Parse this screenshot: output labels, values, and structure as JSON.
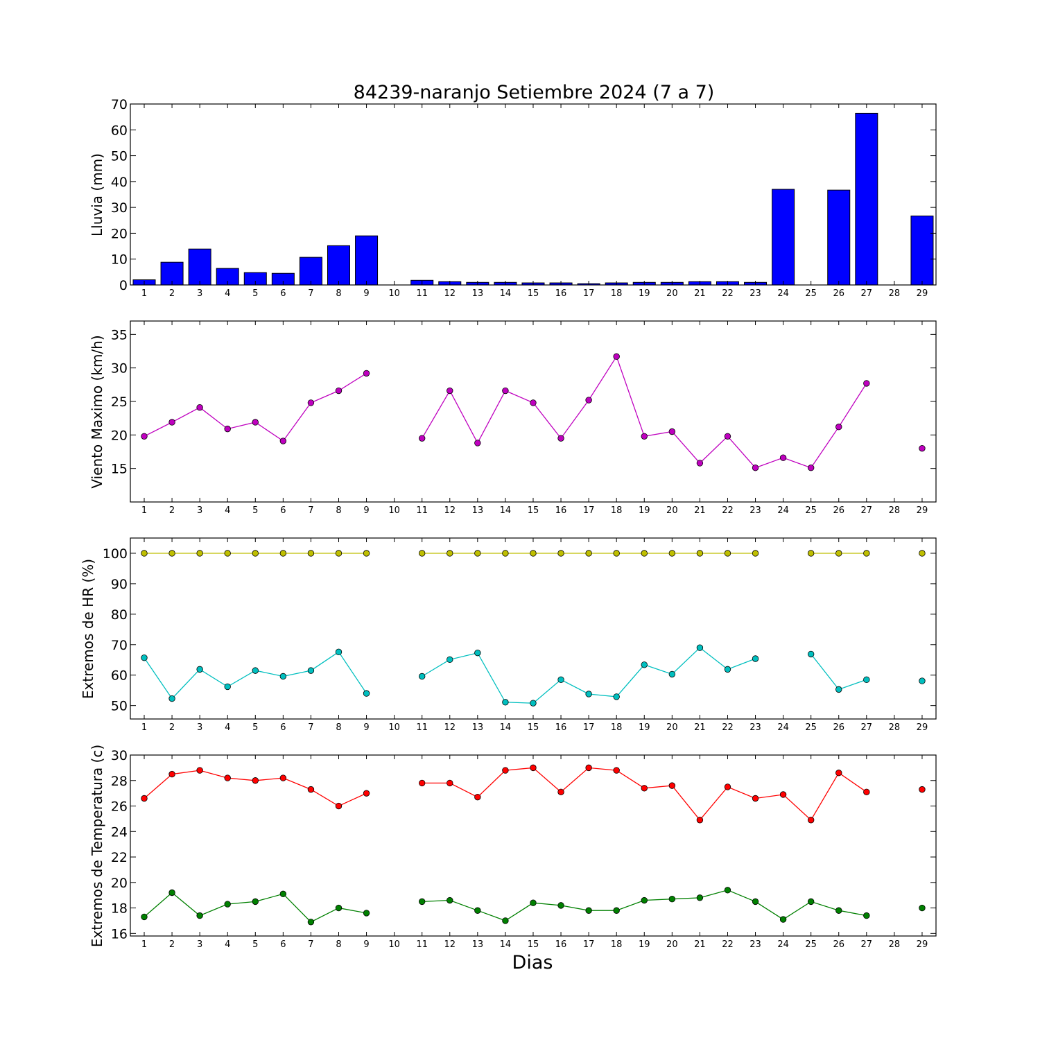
{
  "chart_data": [
    {
      "type": "bar",
      "title": "84239-naranjo Setiembre 2024  (7 a 7)",
      "ylabel": "Lluvia (mm)",
      "ylim": [
        0,
        70
      ],
      "yticks": [
        0,
        10,
        20,
        30,
        40,
        50,
        60,
        70
      ],
      "categories": [
        "1",
        "2",
        "3",
        "4",
        "5",
        "6",
        "7",
        "8",
        "9",
        "10",
        "11",
        "12",
        "13",
        "14",
        "15",
        "16",
        "17",
        "18",
        "19",
        "20",
        "21",
        "22",
        "23",
        "24",
        "25",
        "26",
        "27",
        "28",
        "29"
      ],
      "colors": {
        "bar": "#0000ff"
      },
      "values": [
        2.0,
        8.8,
        13.9,
        6.4,
        4.8,
        4.5,
        10.7,
        15.2,
        19.0,
        null,
        1.8,
        1.3,
        1.0,
        1.0,
        0.8,
        0.8,
        0.5,
        0.8,
        1.0,
        1.0,
        1.3,
        1.3,
        1.0,
        37.0,
        0.0,
        36.7,
        66.4,
        null,
        26.7
      ]
    },
    {
      "type": "line",
      "ylabel": "Viento Maximo (km/h)",
      "ylim": [
        10,
        37
      ],
      "yticks": [
        15,
        20,
        25,
        30,
        35
      ],
      "categories": [
        "1",
        "2",
        "3",
        "4",
        "5",
        "6",
        "7",
        "8",
        "9",
        "10",
        "11",
        "12",
        "13",
        "14",
        "15",
        "16",
        "17",
        "18",
        "19",
        "20",
        "21",
        "22",
        "23",
        "24",
        "25",
        "26",
        "27",
        "28",
        "29"
      ],
      "series": [
        {
          "color": "#bf00bf",
          "values": [
            19.8,
            21.9,
            24.1,
            20.9,
            21.9,
            19.1,
            24.8,
            26.6,
            29.2,
            null,
            19.5,
            26.6,
            18.8,
            26.6,
            24.8,
            19.5,
            25.2,
            31.7,
            19.8,
            20.5,
            15.8,
            19.8,
            15.1,
            16.6,
            15.1,
            21.2,
            27.7,
            null,
            18.0
          ]
        }
      ]
    },
    {
      "type": "line",
      "ylabel": "Extremos de HR (%)",
      "ylim": [
        45.6,
        105
      ],
      "yticks": [
        50,
        60,
        70,
        80,
        90,
        100
      ],
      "categories": [
        "1",
        "2",
        "3",
        "4",
        "5",
        "6",
        "7",
        "8",
        "9",
        "10",
        "11",
        "12",
        "13",
        "14",
        "15",
        "16",
        "17",
        "18",
        "19",
        "20",
        "21",
        "22",
        "23",
        "24",
        "25",
        "26",
        "27",
        "28",
        "29"
      ],
      "series": [
        {
          "color": "#bfbf00",
          "values": [
            100,
            100,
            100,
            100,
            100,
            100,
            100,
            100,
            100,
            null,
            100,
            100,
            100,
            100,
            100,
            100,
            100,
            100,
            100,
            100,
            100,
            100,
            100,
            null,
            100,
            100,
            100,
            null,
            100
          ]
        },
        {
          "color": "#00bfbf",
          "values": [
            65.7,
            52.3,
            61.9,
            56.2,
            61.5,
            59.6,
            61.5,
            67.6,
            54.0,
            null,
            59.6,
            65.1,
            67.3,
            51.1,
            50.8,
            58.5,
            53.8,
            52.9,
            63.4,
            60.3,
            69.0,
            61.9,
            65.4,
            null,
            66.9,
            55.3,
            58.5,
            null,
            58.1
          ]
        }
      ]
    },
    {
      "type": "line",
      "ylabel": "Extremos de Temperatura (c)",
      "xlabel": "Dias",
      "ylim": [
        15.8,
        30
      ],
      "yticks": [
        16,
        18,
        20,
        22,
        24,
        26,
        28,
        30
      ],
      "categories": [
        "1",
        "2",
        "3",
        "4",
        "5",
        "6",
        "7",
        "8",
        "9",
        "10",
        "11",
        "12",
        "13",
        "14",
        "15",
        "16",
        "17",
        "18",
        "19",
        "20",
        "21",
        "22",
        "23",
        "24",
        "25",
        "26",
        "27",
        "28",
        "29"
      ],
      "series": [
        {
          "color": "#ff0000",
          "values": [
            26.6,
            28.5,
            28.8,
            28.2,
            28.0,
            28.2,
            27.3,
            26.0,
            27.0,
            null,
            27.8,
            27.8,
            26.7,
            28.8,
            29.0,
            27.1,
            29.0,
            28.8,
            27.4,
            27.6,
            24.9,
            27.5,
            26.6,
            26.9,
            24.9,
            28.6,
            27.1,
            null,
            27.3
          ]
        },
        {
          "color": "#008000",
          "values": [
            17.3,
            19.2,
            17.4,
            18.3,
            18.5,
            19.1,
            16.9,
            18.0,
            17.6,
            null,
            18.5,
            18.6,
            17.8,
            17.0,
            18.4,
            18.2,
            17.8,
            17.8,
            18.6,
            18.7,
            18.8,
            19.4,
            18.5,
            17.1,
            18.5,
            17.8,
            17.4,
            null,
            18.0
          ]
        }
      ]
    }
  ]
}
